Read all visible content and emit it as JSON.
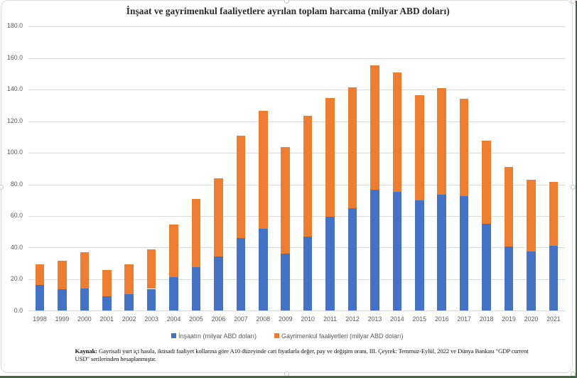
{
  "chart": {
    "title": "İnşaat ve gayrimenkul faaliyetlere ayrılan toplam harcama (milyar ABD doları)"
  },
  "chart_data": {
    "type": "bar",
    "stacked": true,
    "title": "İnşaat ve gayrimenkul faaliyetlere ayrılan toplam harcama (milyar ABD doları)",
    "categories": [
      "1998",
      "1999",
      "2000",
      "2001",
      "2002",
      "2003",
      "2004",
      "2005",
      "2006",
      "2007",
      "2008",
      "2009",
      "2010",
      "2011",
      "2012",
      "2013",
      "2014",
      "2015",
      "2016",
      "2017",
      "2018",
      "2019",
      "2020",
      "2021"
    ],
    "series": [
      {
        "name": "İnşaatın (milyar ABD doları)",
        "color": "#4472C4",
        "values": [
          16.3,
          13.7,
          14.0,
          9.3,
          10.4,
          13.9,
          21.2,
          27.8,
          34.5,
          46.0,
          51.7,
          36.2,
          46.8,
          59.4,
          65.0,
          76.7,
          75.4,
          70.1,
          73.3,
          72.5,
          55.0,
          40.8,
          37.5,
          40.9
        ]
      },
      {
        "name": "Gayrimenkul faaliyetleri (milyar ABD doları)",
        "color": "#ED7D31",
        "values": [
          12.9,
          17.8,
          23.2,
          16.7,
          19.0,
          25.0,
          33.3,
          42.9,
          49.4,
          64.8,
          75.1,
          67.6,
          76.8,
          75.4,
          76.5,
          78.5,
          75.3,
          66.3,
          67.5,
          61.6,
          52.7,
          50.2,
          45.3,
          40.5
        ]
      }
    ],
    "xlabel": "",
    "ylabel": "",
    "ylim": [
      0,
      180
    ],
    "ytick_step": 20,
    "ytick_labels": [
      "0.0",
      "20.0",
      "40.0",
      "60.0",
      "80.0",
      "100.0",
      "120.0",
      "140.0",
      "160.0",
      "180.0"
    ],
    "grid": true,
    "legend_position": "bottom"
  },
  "footnote": {
    "label": "Kaynak:",
    "line1": "Gayrisafi yurt içi hasıla, iktisadi faaliyet kollarına göre A10 düzeyinde cari fiyatlarla değer, pay ve değişim oranı, III. Çeyrek: Temmuz-Eylül, 2022 ve Dünya Bankası \"GDP current",
    "line2": "USD\" serilerinden hesaplanmıştır."
  },
  "colors": {
    "construction": "#4472C4",
    "real_estate": "#ED7D31",
    "gridline": "#D9D9D9",
    "axis_text": "#595959",
    "frame_border": "#D9D9D9",
    "edge_line": "#3C673F"
  }
}
